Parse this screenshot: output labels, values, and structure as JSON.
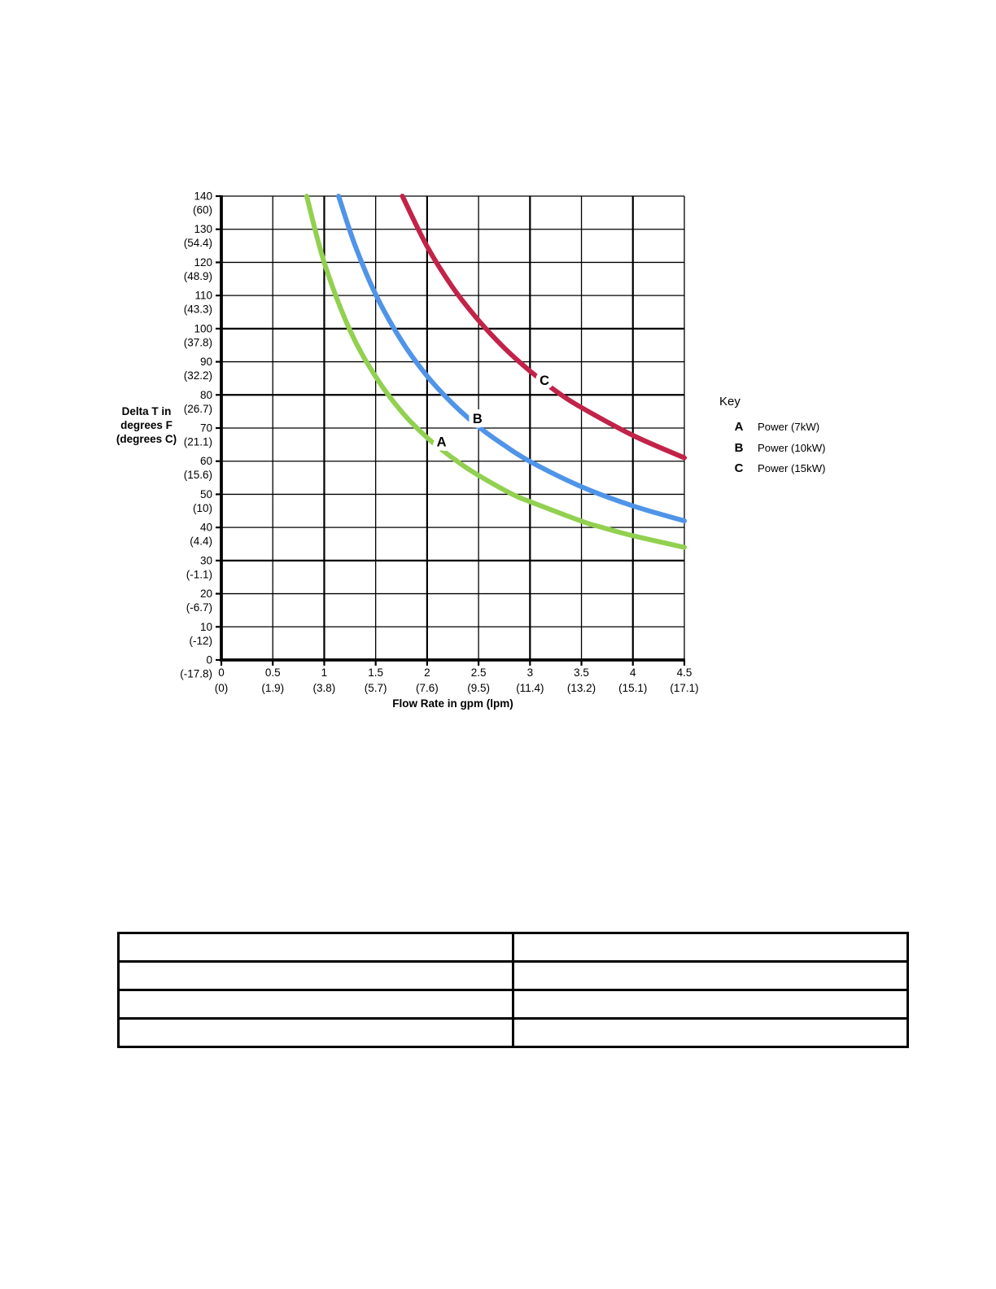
{
  "chart": {
    "y_axis": {
      "title_lines": [
        "Delta T in",
        "degrees F",
        "(degrees C)"
      ],
      "ticks": [
        {
          "v": 140,
          "f": "140",
          "c": "(60)"
        },
        {
          "v": 130,
          "f": "130",
          "c": "(54.4)"
        },
        {
          "v": 120,
          "f": "120",
          "c": "(48.9)"
        },
        {
          "v": 110,
          "f": "110",
          "c": "(43.3)"
        },
        {
          "v": 100,
          "f": "100",
          "c": "(37.8)"
        },
        {
          "v": 90,
          "f": "90",
          "c": "(32.2)"
        },
        {
          "v": 80,
          "f": "80",
          "c": "(26.7)"
        },
        {
          "v": 70,
          "f": "70",
          "c": "(21.1)"
        },
        {
          "v": 60,
          "f": "60",
          "c": "(15.6)"
        },
        {
          "v": 50,
          "f": "50",
          "c": "(10)"
        },
        {
          "v": 40,
          "f": "40",
          "c": "(4.4)"
        },
        {
          "v": 30,
          "f": "30",
          "c": "(-1.1)"
        },
        {
          "v": 20,
          "f": "20",
          "c": "(-6.7)"
        },
        {
          "v": 10,
          "f": "10",
          "c": "(-12)"
        },
        {
          "v": 0,
          "f": "0",
          "c": "(-17.8)"
        }
      ]
    },
    "x_axis": {
      "title": "Flow Rate in gpm (lpm)",
      "ticks": [
        {
          "v": 0,
          "gpm": "0",
          "lpm": "(0)"
        },
        {
          "v": 0.5,
          "gpm": "0.5",
          "lpm": "(1.9)"
        },
        {
          "v": 1,
          "gpm": "1",
          "lpm": "(3.8)"
        },
        {
          "v": 1.5,
          "gpm": "1.5",
          "lpm": "(5.7)"
        },
        {
          "v": 2,
          "gpm": "2",
          "lpm": "(7.6)"
        },
        {
          "v": 2.5,
          "gpm": "2.5",
          "lpm": "(9.5)"
        },
        {
          "v": 3,
          "gpm": "3",
          "lpm": "(11.4)"
        },
        {
          "v": 3.5,
          "gpm": "3.5",
          "lpm": "(13.2)"
        },
        {
          "v": 4,
          "gpm": "4",
          "lpm": "(15.1)"
        },
        {
          "v": 4.5,
          "gpm": "4.5",
          "lpm": "(17.1)"
        }
      ]
    },
    "key": {
      "title": "Key",
      "items": [
        {
          "letter": "A",
          "label": "Power (7kW)"
        },
        {
          "letter": "B",
          "label": "Power (10kW)"
        },
        {
          "letter": "C",
          "label": "Power (15kW)"
        }
      ]
    }
  },
  "chart_data": {
    "type": "line",
    "title": "",
    "xlabel": "Flow Rate in gpm (lpm)",
    "ylabel": "Delta T in degrees F (degrees C)",
    "xlim": [
      0,
      4.5
    ],
    "ylim": [
      0,
      140
    ],
    "x_major_step": 0.5,
    "y_major_step": 10,
    "grid": true,
    "legend_position": "right",
    "series": [
      {
        "name": "A",
        "label": "Power (7kW)",
        "color": "#92D050",
        "label_at": [
          2.14,
          64.5
        ],
        "points": [
          [
            0.83,
            140
          ],
          [
            1.0,
            120
          ],
          [
            1.25,
            99.5
          ],
          [
            1.5,
            85.5
          ],
          [
            1.75,
            75.0
          ],
          [
            2.0,
            67.1
          ],
          [
            2.29,
            60.0
          ],
          [
            2.5,
            55.7
          ],
          [
            2.83,
            50.0
          ],
          [
            3.0,
            47.8
          ],
          [
            3.5,
            41.9
          ],
          [
            3.7,
            40.0
          ],
          [
            4.0,
            37.5
          ],
          [
            4.5,
            34.0
          ]
        ]
      },
      {
        "name": "B",
        "label": "Power (10kW)",
        "color": "#4F94E8",
        "label_at": [
          2.49,
          71.5
        ],
        "points": [
          [
            1.14,
            140
          ],
          [
            1.3,
            125.1
          ],
          [
            1.5,
            110.3
          ],
          [
            1.75,
            96.4
          ],
          [
            2.0,
            85.7
          ],
          [
            2.25,
            77.3
          ],
          [
            2.5,
            70.4
          ],
          [
            2.75,
            64.8
          ],
          [
            3.0,
            59.9
          ],
          [
            3.5,
            52.3
          ],
          [
            4.0,
            46.5
          ],
          [
            4.5,
            42.0
          ]
        ]
      },
      {
        "name": "C",
        "label": "Power (15kW)",
        "color": "#C22348",
        "label_at": [
          3.14,
          83.0
        ],
        "points": [
          [
            1.76,
            140
          ],
          [
            2.0,
            124.8
          ],
          [
            2.25,
            112.4
          ],
          [
            2.5,
            102.5
          ],
          [
            2.75,
            94.2
          ],
          [
            3.0,
            87.2
          ],
          [
            3.25,
            81.2
          ],
          [
            3.5,
            76.2
          ],
          [
            4.0,
            67.8
          ],
          [
            4.5,
            61.0
          ]
        ]
      }
    ]
  },
  "table": {
    "rows": [
      [
        "",
        ""
      ],
      [
        "",
        ""
      ],
      [
        "",
        ""
      ],
      [
        "",
        ""
      ]
    ]
  }
}
